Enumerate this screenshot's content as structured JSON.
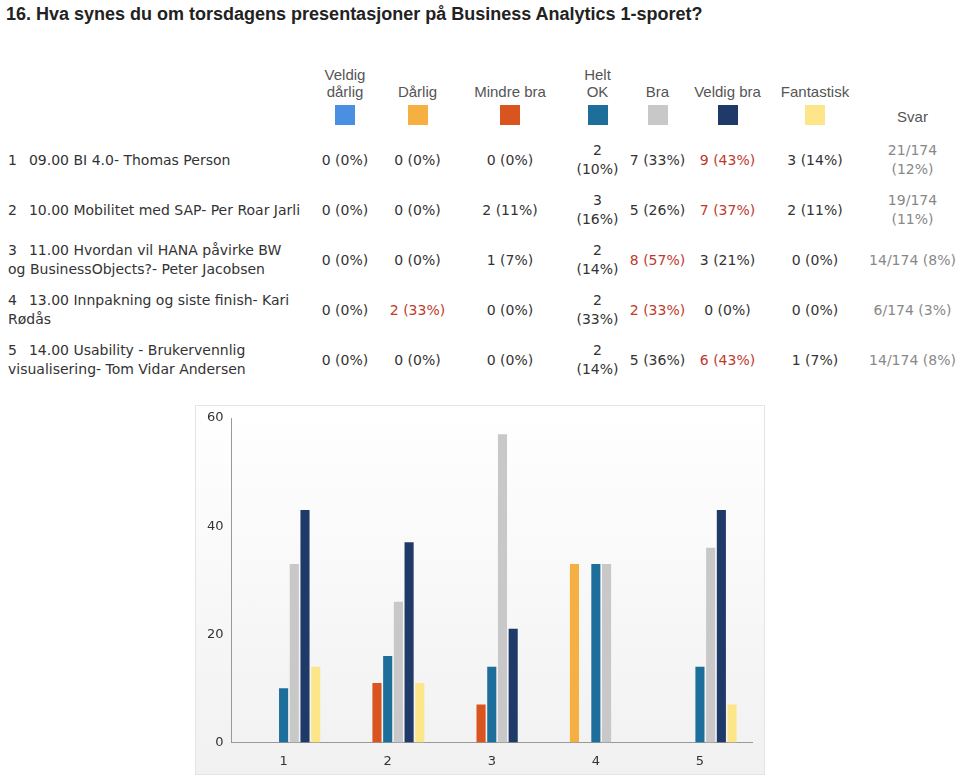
{
  "header": {
    "title": "16. Hva synes du om torsdagens presentasjoner på Business Analytics 1-sporet?"
  },
  "table": {
    "answers_header": "Svar",
    "rows": [
      {
        "label": "09.00 BI 4.0- Thomas Person",
        "cells": [
          {
            "text": "0 (0%)"
          },
          {
            "text": "0 (0%)"
          },
          {
            "text": "0 (0%)"
          },
          {
            "text": "2 (10%)"
          },
          {
            "text": "7 (33%)"
          },
          {
            "text": "9 (43%)",
            "emphasis": true
          },
          {
            "text": "3 (14%)"
          }
        ],
        "answers": "21/174 (12%)"
      },
      {
        "label": "10.00 Mobilitet med SAP- Per Roar Jarli",
        "cells": [
          {
            "text": "0 (0%)"
          },
          {
            "text": "0 (0%)"
          },
          {
            "text": "2 (11%)"
          },
          {
            "text": "3 (16%)"
          },
          {
            "text": "5 (26%)"
          },
          {
            "text": "7 (37%)",
            "emphasis": true
          },
          {
            "text": "2 (11%)"
          }
        ],
        "answers": "19/174 (11%)"
      },
      {
        "label": "11.00 Hvordan vil HANA påvirke BW og BusinessObjects?- Peter Jacobsen",
        "cells": [
          {
            "text": "0 (0%)"
          },
          {
            "text": "0 (0%)"
          },
          {
            "text": "1 (7%)"
          },
          {
            "text": "2 (14%)"
          },
          {
            "text": "8 (57%)",
            "emphasis": true
          },
          {
            "text": "3 (21%)"
          },
          {
            "text": "0 (0%)"
          }
        ],
        "answers": "14/174 (8%)"
      },
      {
        "label": "13.00 Innpakning og siste finish- Kari Rødås",
        "cells": [
          {
            "text": "0 (0%)"
          },
          {
            "text": "2 (33%)",
            "emphasis": true
          },
          {
            "text": "0 (0%)"
          },
          {
            "text": "2 (33%)"
          },
          {
            "text": "2 (33%)",
            "emphasis": true
          },
          {
            "text": "0 (0%)"
          },
          {
            "text": "0 (0%)"
          }
        ],
        "answers": "6/174 (3%)"
      },
      {
        "label": "14.00 Usability - Brukervennlig visualisering- Tom Vidar Andersen",
        "cells": [
          {
            "text": "0 (0%)"
          },
          {
            "text": "0 (0%)"
          },
          {
            "text": "0 (0%)"
          },
          {
            "text": "2 (14%)"
          },
          {
            "text": "5 (36%)"
          },
          {
            "text": "6 (43%)",
            "emphasis": true
          },
          {
            "text": "1 (7%)"
          }
        ],
        "answers": "14/174 (8%)"
      }
    ]
  },
  "chart_data": {
    "type": "bar",
    "categories": [
      "1",
      "2",
      "3",
      "4",
      "5"
    ],
    "series": [
      {
        "name": "Veldig dårlig",
        "color": "#4a90e2",
        "values": [
          0,
          0,
          0,
          0,
          0
        ]
      },
      {
        "name": "Dårlig",
        "color": "#f5b041",
        "values": [
          0,
          0,
          0,
          33,
          0
        ]
      },
      {
        "name": "Mindre bra",
        "color": "#d9541e",
        "values": [
          0,
          11,
          7,
          0,
          0
        ]
      },
      {
        "name": "Helt OK",
        "color": "#1e6e9c",
        "values": [
          10,
          16,
          14,
          33,
          14
        ]
      },
      {
        "name": "Bra",
        "color": "#c8c8c8",
        "values": [
          33,
          26,
          57,
          33,
          36
        ]
      },
      {
        "name": "Veldig bra",
        "color": "#1f3a68",
        "values": [
          43,
          37,
          21,
          0,
          43
        ]
      },
      {
        "name": "Fantastisk",
        "color": "#fde68a",
        "values": [
          14,
          11,
          0,
          0,
          7
        ]
      }
    ],
    "ylim": [
      0,
      60
    ],
    "yticks": [
      0,
      20,
      40,
      60
    ],
    "grid": false
  }
}
